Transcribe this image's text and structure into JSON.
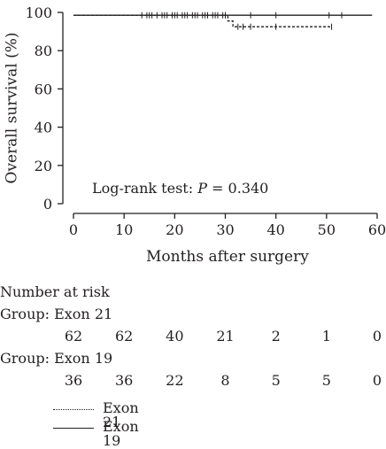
{
  "chart_data": {
    "type": "line",
    "xlabel": "Months after surgery",
    "ylabel": "Overall survival (%)",
    "xlim": [
      0,
      60
    ],
    "ylim": [
      0,
      100
    ],
    "xticks": [
      0,
      10,
      20,
      30,
      40,
      50,
      60
    ],
    "yticks": [
      0,
      20,
      40,
      60,
      80,
      100
    ],
    "annotation": {
      "prefix": "Log-rank test: ",
      "italic": "P",
      "suffix": " = 0.340"
    },
    "series": [
      {
        "name": "Exon 21",
        "style": "dotted",
        "steps": [
          [
            0,
            98.5
          ],
          [
            30.5,
            98.5
          ],
          [
            30.5,
            95.5
          ],
          [
            31.5,
            95.5
          ],
          [
            31.5,
            92.5
          ],
          [
            51,
            92.5
          ]
        ],
        "censors": [
          [
            13.5,
            98.5
          ],
          [
            14.5,
            98.5
          ],
          [
            15.5,
            98.5
          ],
          [
            16.5,
            98.5
          ],
          [
            17.5,
            98.5
          ],
          [
            18.5,
            98.5
          ],
          [
            19.5,
            98.5
          ],
          [
            20.5,
            98.5
          ],
          [
            21.5,
            98.5
          ],
          [
            22.5,
            98.5
          ],
          [
            23.5,
            98.5
          ],
          [
            24.5,
            98.5
          ],
          [
            25.5,
            98.5
          ],
          [
            26.5,
            98.5
          ],
          [
            27.5,
            98.5
          ],
          [
            28.5,
            98.5
          ],
          [
            29.5,
            98.5
          ],
          [
            30,
            98.5
          ],
          [
            32.5,
            92.5
          ],
          [
            33.5,
            92.5
          ],
          [
            35,
            92.5
          ],
          [
            40,
            92.5
          ],
          [
            51,
            92.5
          ]
        ]
      },
      {
        "name": "Exon 19",
        "style": "solid",
        "steps": [
          [
            0,
            98.5
          ],
          [
            59,
            98.5
          ]
        ],
        "censors": [
          [
            15,
            98.5
          ],
          [
            18,
            98.5
          ],
          [
            20,
            98.5
          ],
          [
            22,
            98.5
          ],
          [
            24,
            98.5
          ],
          [
            26,
            98.5
          ],
          [
            28,
            98.5
          ],
          [
            30,
            98.5
          ],
          [
            35,
            98.5
          ],
          [
            40,
            98.5
          ],
          [
            50.5,
            98.5
          ],
          [
            53,
            98.5
          ]
        ]
      }
    ]
  },
  "risk_table": {
    "title": "Number at risk",
    "groups": [
      {
        "label": "Group: Exon 21",
        "values": [
          "62",
          "62",
          "40",
          "21",
          "2",
          "1",
          "0"
        ]
      },
      {
        "label": "Group: Exon 19",
        "values": [
          "36",
          "36",
          "22",
          "8",
          "5",
          "5",
          "0"
        ]
      }
    ]
  },
  "legend": [
    {
      "label": "Exon 21",
      "style": "dotted"
    },
    {
      "label": "Exon 19",
      "style": "solid"
    }
  ]
}
